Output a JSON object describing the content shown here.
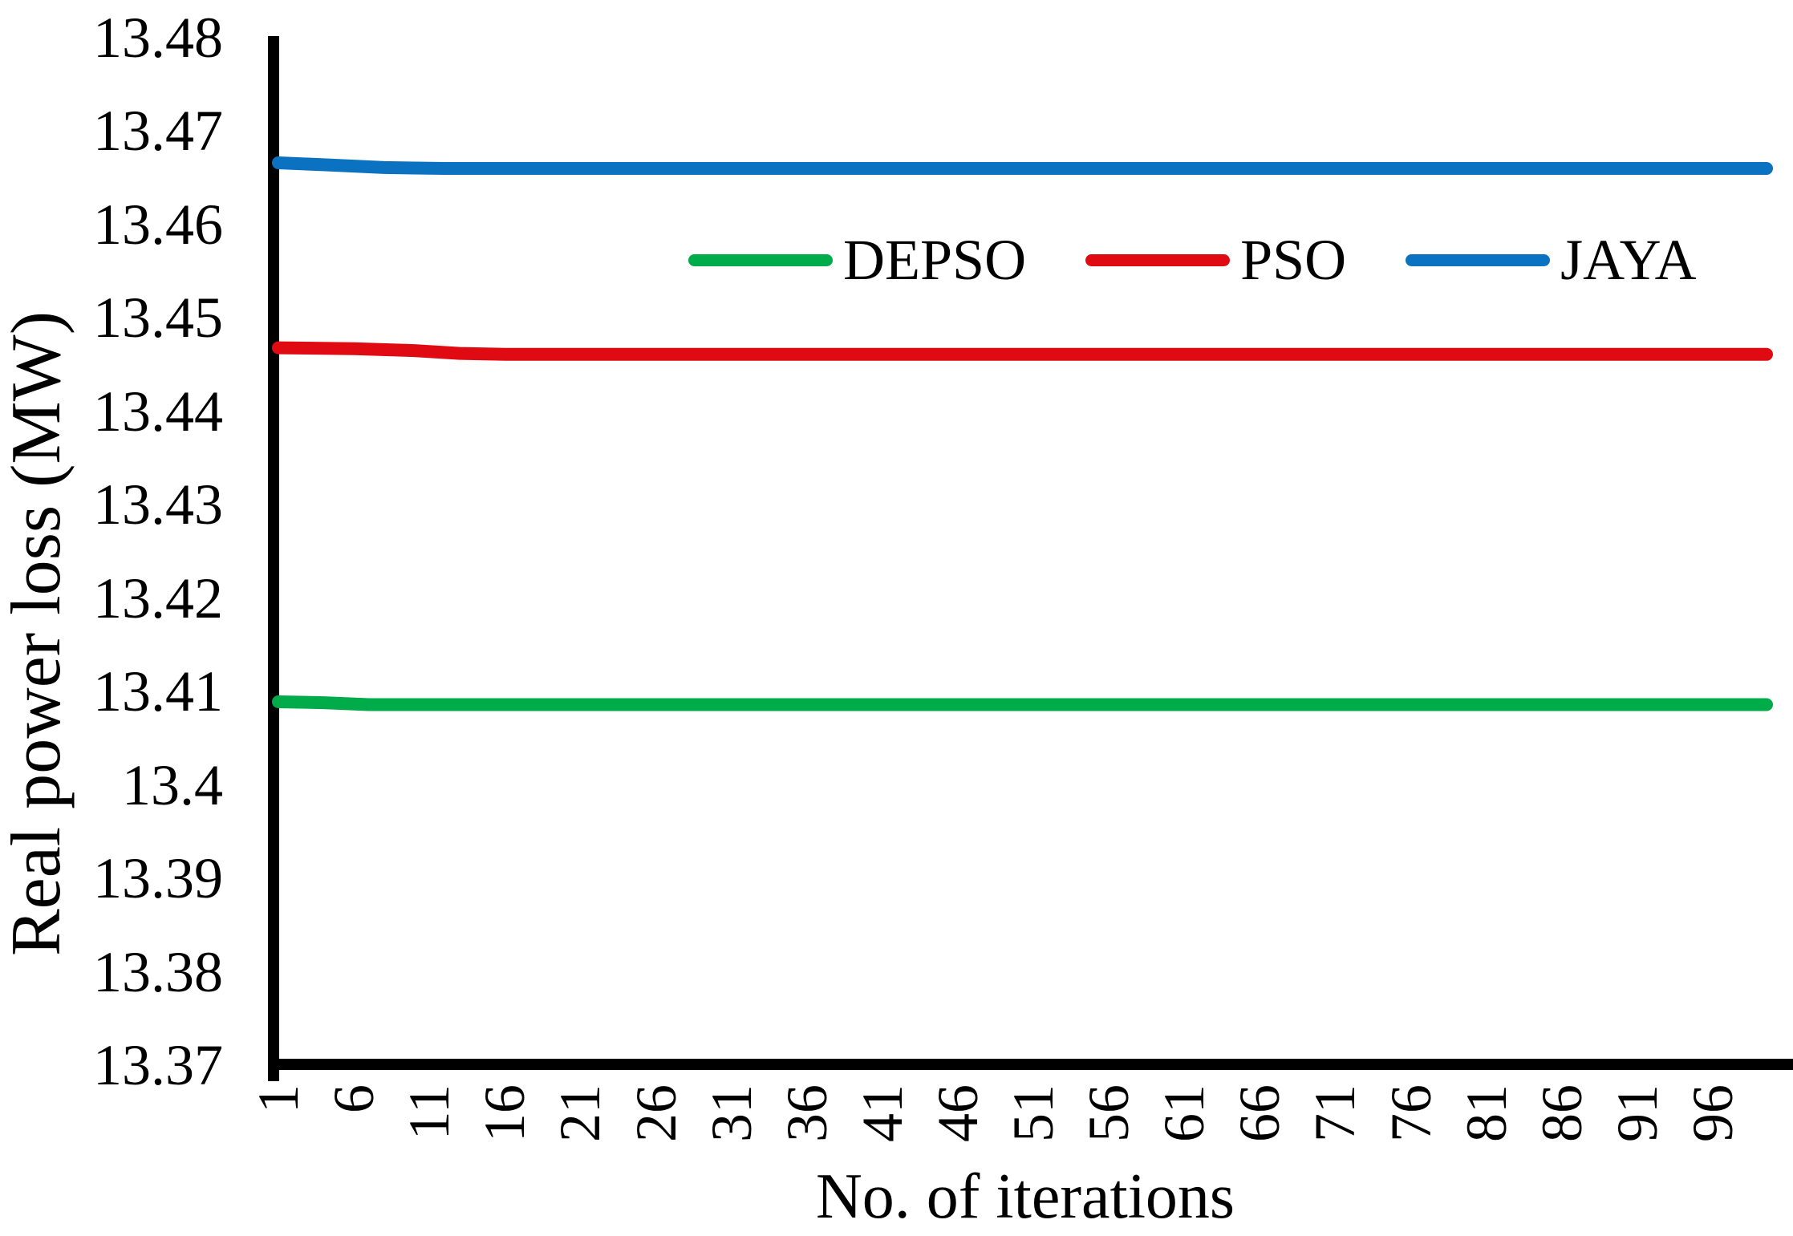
{
  "figure": {
    "background": "#ffffff",
    "axis_color": "#000000"
  },
  "chart_data": {
    "type": "line",
    "title": "",
    "xlabel": "No. of iterations",
    "ylabel": "Real power loss (MW)",
    "xlim": [
      1,
      100
    ],
    "ylim": [
      13.37,
      13.48
    ],
    "x_tick_values": [
      1,
      6,
      11,
      16,
      21,
      26,
      31,
      36,
      41,
      46,
      51,
      56,
      61,
      66,
      71,
      76,
      81,
      86,
      91,
      96
    ],
    "y_tick_labels": [
      "13.48",
      "13.47",
      "13.46",
      "13.45",
      "13.44",
      "13.43",
      "13.42",
      "13.41",
      "13.4",
      "13.39",
      "13.38",
      "13.37"
    ],
    "grid": false,
    "legend_position": "inside-top-center",
    "series": [
      {
        "name": "DEPSO",
        "color": "#00ab4a",
        "final_value": 13.4086,
        "points": [
          [
            1,
            13.4089
          ],
          [
            4,
            13.4088
          ],
          [
            7,
            13.4086
          ],
          [
            50,
            13.4086
          ],
          [
            100,
            13.4086
          ]
        ]
      },
      {
        "name": "PSO",
        "color": "#e00b12",
        "final_value": 13.4461,
        "points": [
          [
            1,
            13.4468
          ],
          [
            6,
            13.4467
          ],
          [
            10,
            13.4465
          ],
          [
            13,
            13.4462
          ],
          [
            16,
            13.4461
          ],
          [
            100,
            13.4461
          ]
        ]
      },
      {
        "name": "JAYA",
        "color": "#0b72c2",
        "final_value": 13.466,
        "points": [
          [
            1,
            13.4666
          ],
          [
            4,
            13.4664
          ],
          [
            8,
            13.4661
          ],
          [
            12,
            13.466
          ],
          [
            100,
            13.466
          ]
        ]
      }
    ]
  },
  "legend": {
    "items": [
      {
        "label": "DEPSO",
        "color": "#00ab4a"
      },
      {
        "label": "PSO",
        "color": "#e00b12"
      },
      {
        "label": "JAYA",
        "color": "#0b72c2"
      }
    ]
  }
}
